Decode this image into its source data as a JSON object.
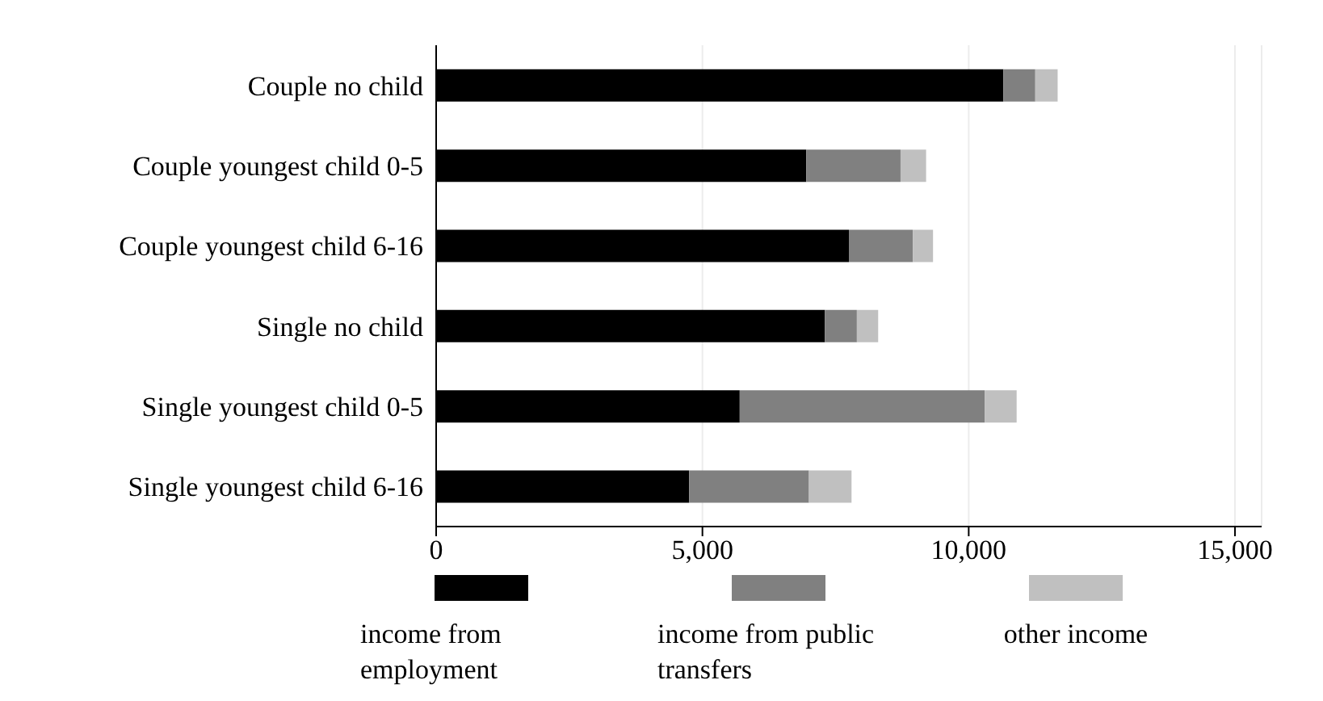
{
  "chart_data": {
    "type": "bar",
    "orientation": "horizontal",
    "stacked": true,
    "categories": [
      "Couple no child",
      "Couple youngest child 0-5",
      "Couple youngest child 6-16",
      "Single no child",
      "Single youngest child 0-5",
      "Single youngest child 6-16"
    ],
    "series": [
      {
        "name": "income from employment",
        "color": "#000000",
        "values": [
          10650,
          6950,
          7750,
          7300,
          5700,
          4750
        ]
      },
      {
        "name": "income from public transfers",
        "color": "#808080",
        "values": [
          600,
          1770,
          1200,
          600,
          4600,
          2250
        ]
      },
      {
        "name": "other income",
        "color": "#c0c0c0",
        "values": [
          420,
          480,
          380,
          400,
          600,
          800
        ]
      }
    ],
    "xlim": [
      0,
      15500
    ],
    "xticks": [
      {
        "value": 0,
        "label": "0"
      },
      {
        "value": 5000,
        "label": "5,000"
      },
      {
        "value": 10000,
        "label": "10,000"
      },
      {
        "value": 15000,
        "label": "15,000"
      }
    ],
    "grid": "x",
    "legend": "bottom"
  }
}
